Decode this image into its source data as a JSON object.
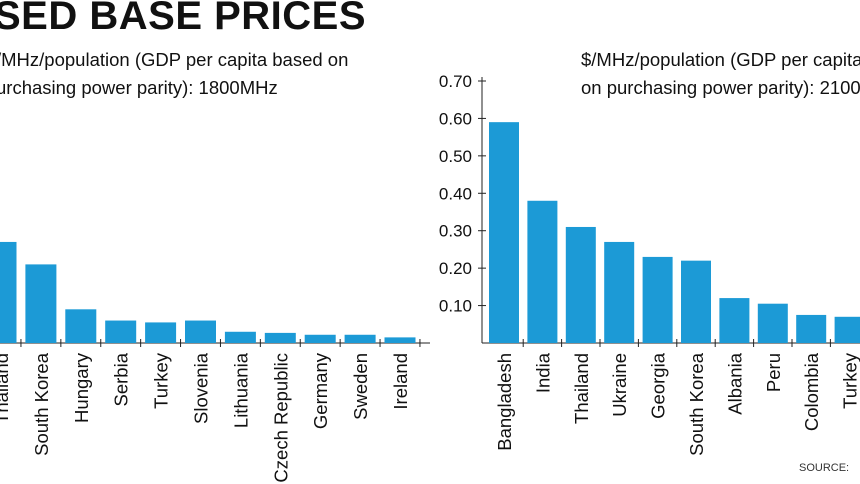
{
  "headline": "SED BASE PRICES",
  "source_label": "SOURCE:",
  "left_panel": {
    "subtitle_lines": [
      "/MHz/population (GDP per capita based on",
      "urchasing power parity): 1800MHz"
    ]
  },
  "right_panel": {
    "subtitle_lines": [
      "$/MHz/population (GDP per capita",
      "on purchasing power parity): 2100"
    ]
  },
  "chart_data": [
    {
      "type": "bar",
      "title": "/MHz/population (GDP per capita based on urchasing power parity): 1800MHz",
      "categories": [
        "Thailand",
        "South Korea",
        "Hungary",
        "Serbia",
        "Turkey",
        "Slovenia",
        "Lithuania",
        "Czech Republic",
        "Germany",
        "Sweden",
        "Ireland"
      ],
      "values": [
        0.27,
        0.21,
        0.09,
        0.06,
        0.055,
        0.06,
        0.03,
        0.027,
        0.022,
        0.022,
        0.015
      ],
      "ylim": [
        0,
        0.7
      ],
      "color": "#1c9ad6"
    },
    {
      "type": "bar",
      "title": "$/MHz/population (GDP per capita on purchasing power parity): 2100",
      "categories": [
        "Bangladesh",
        "India",
        "Thailand",
        "Ukraine",
        "Georgia",
        "South Korea",
        "Albania",
        "Peru",
        "Colombia",
        "Turkey"
      ],
      "values": [
        0.59,
        0.38,
        0.31,
        0.27,
        0.23,
        0.22,
        0.12,
        0.105,
        0.075,
        0.07
      ],
      "ylim": [
        0,
        0.7
      ],
      "yticks": [
        "0.10",
        "0.20",
        "0.30",
        "0.40",
        "0.50",
        "0.60",
        "0.70"
      ],
      "color": "#1c9ad6"
    }
  ],
  "colors": {
    "bar": "#1c9ad6",
    "axis": "#222222"
  }
}
